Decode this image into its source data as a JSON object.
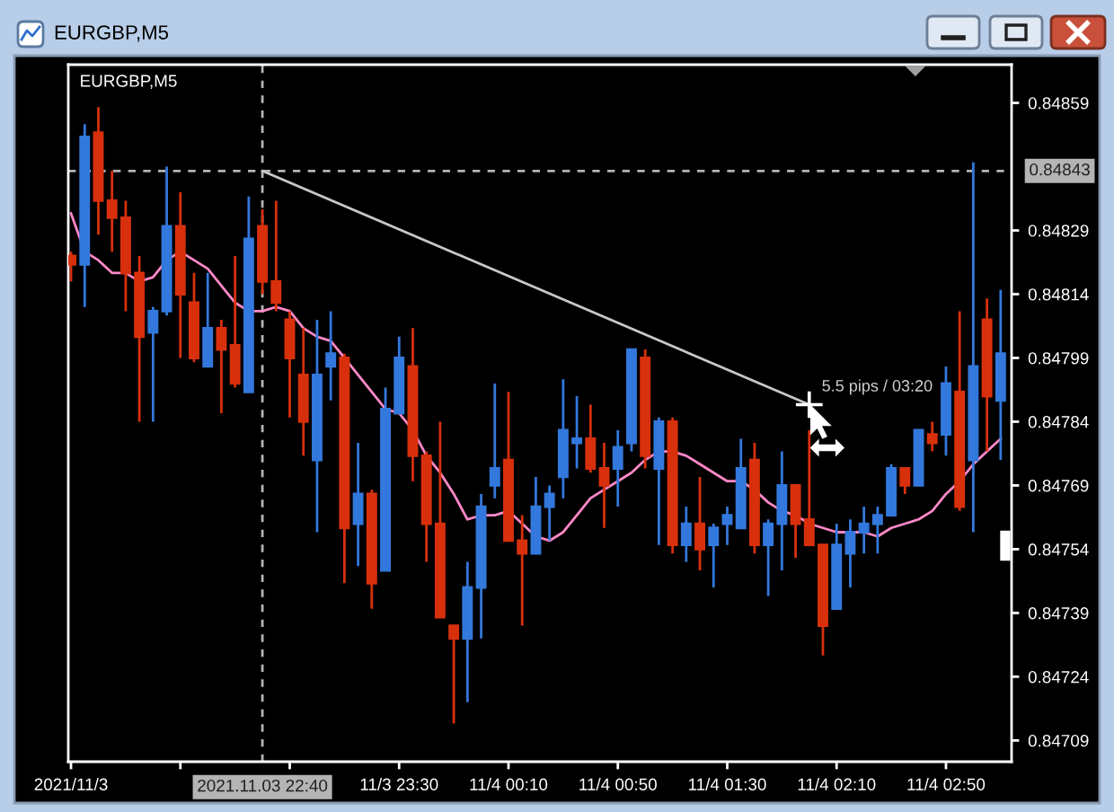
{
  "chart_data": {
    "type": "candlestick",
    "title": "EURGBP,M5",
    "subtitle": "EURGBP,M5",
    "x": [
      "2021-11-03T21:30",
      "2021-11-03T21:35",
      "2021-11-03T21:40",
      "2021-11-03T21:45",
      "2021-11-03T21:50",
      "2021-11-03T21:55",
      "2021-11-03T22:00",
      "2021-11-03T22:05",
      "2021-11-03T22:10",
      "2021-11-03T22:15",
      "2021-11-03T22:20",
      "2021-11-03T22:25",
      "2021-11-03T22:30",
      "2021-11-03T22:35",
      "2021-11-03T22:40",
      "2021-11-03T22:45",
      "2021-11-03T22:50",
      "2021-11-03T22:55",
      "2021-11-03T23:00",
      "2021-11-03T23:05",
      "2021-11-03T23:10",
      "2021-11-03T23:15",
      "2021-11-03T23:20",
      "2021-11-03T23:25",
      "2021-11-03T23:30",
      "2021-11-03T23:35",
      "2021-11-03T23:40",
      "2021-11-03T23:45",
      "2021-11-03T23:50",
      "2021-11-03T23:55",
      "2021-11-04T00:00",
      "2021-11-04T00:05",
      "2021-11-04T00:10",
      "2021-11-04T00:15",
      "2021-11-04T00:20",
      "2021-11-04T00:25",
      "2021-11-04T00:30",
      "2021-11-04T00:35",
      "2021-11-04T00:40",
      "2021-11-04T00:45",
      "2021-11-04T00:50",
      "2021-11-04T00:55",
      "2021-11-04T01:00",
      "2021-11-04T01:05",
      "2021-11-04T01:10",
      "2021-11-04T01:15",
      "2021-11-04T01:20",
      "2021-11-04T01:25",
      "2021-11-04T01:30",
      "2021-11-04T01:35",
      "2021-11-04T01:40",
      "2021-11-04T01:45",
      "2021-11-04T01:50",
      "2021-11-04T01:55",
      "2021-11-04T02:00",
      "2021-11-04T02:05",
      "2021-11-04T02:10",
      "2021-11-04T02:15",
      "2021-11-04T02:20",
      "2021-11-04T02:25",
      "2021-11-04T02:30",
      "2021-11-04T02:35",
      "2021-11-04T02:40",
      "2021-11-04T02:45",
      "2021-11-04T02:50",
      "2021-11-04T02:55",
      "2021-11-04T03:00",
      "2021-11-04T03:05",
      "2021-11-04T03:10"
    ],
    "ohlc": [
      [
        0.84823,
        0.84824,
        0.84817,
        0.84821
      ],
      [
        0.84821,
        0.84854,
        0.84811,
        0.84851
      ],
      [
        0.84852,
        0.84858,
        0.84828,
        0.84836
      ],
      [
        0.84836,
        0.84843,
        0.84824,
        0.84832
      ],
      [
        0.84832,
        0.84836,
        0.8481,
        0.84819
      ],
      [
        0.84819,
        0.84823,
        0.84784,
        0.84804
      ],
      [
        0.84805,
        0.84811,
        0.84784,
        0.8481
      ],
      [
        0.8481,
        0.84844,
        0.84809,
        0.8483
      ],
      [
        0.8483,
        0.84838,
        0.84799,
        0.84814
      ],
      [
        0.84812,
        0.84819,
        0.84798,
        0.84799
      ],
      [
        0.84797,
        0.84819,
        0.84797,
        0.84806
      ],
      [
        0.84806,
        0.84808,
        0.84786,
        0.84801
      ],
      [
        0.84802,
        0.84823,
        0.84792,
        0.84793
      ],
      [
        0.84791,
        0.84837,
        0.84791,
        0.84827
      ],
      [
        0.8483,
        0.84834,
        0.84814,
        0.84817
      ],
      [
        0.84817,
        0.84836,
        0.8481,
        0.84812
      ],
      [
        0.84808,
        0.8481,
        0.84785,
        0.84799
      ],
      [
        0.84795,
        0.84806,
        0.84776,
        0.84784
      ],
      [
        0.84775,
        0.84808,
        0.84758,
        0.84795
      ],
      [
        0.84797,
        0.8481,
        0.84789,
        0.848
      ],
      [
        0.84799,
        0.848,
        0.84746,
        0.84759
      ],
      [
        0.8476,
        0.84779,
        0.8475,
        0.84767
      ],
      [
        0.84767,
        0.84768,
        0.8474,
        0.84746
      ],
      [
        0.84749,
        0.84792,
        0.84749,
        0.84787
      ],
      [
        0.84786,
        0.84804,
        0.84786,
        0.84799
      ],
      [
        0.84797,
        0.84806,
        0.8477,
        0.84776
      ],
      [
        0.84776,
        0.84777,
        0.84751,
        0.8476
      ],
      [
        0.8476,
        0.84784,
        0.84738,
        0.84738
      ],
      [
        0.84736,
        0.84736,
        0.84713,
        0.84733
      ],
      [
        0.84733,
        0.84751,
        0.84718,
        0.84745
      ],
      [
        0.84745,
        0.84767,
        0.84733,
        0.84764
      ],
      [
        0.84769,
        0.84793,
        0.84766,
        0.84773
      ],
      [
        0.84775,
        0.84791,
        0.84756,
        0.84756
      ],
      [
        0.84756,
        0.84762,
        0.84736,
        0.84753
      ],
      [
        0.84753,
        0.84771,
        0.84753,
        0.84764
      ],
      [
        0.84764,
        0.84769,
        0.84756,
        0.84767
      ],
      [
        0.84771,
        0.84794,
        0.84766,
        0.84782
      ],
      [
        0.84779,
        0.8479,
        0.84773,
        0.8478
      ],
      [
        0.8478,
        0.84788,
        0.84772,
        0.84773
      ],
      [
        0.84773,
        0.84779,
        0.84759,
        0.84769
      ],
      [
        0.84773,
        0.84782,
        0.84764,
        0.84778
      ],
      [
        0.84779,
        0.84801,
        0.84777,
        0.84801
      ],
      [
        0.84799,
        0.84801,
        0.84773,
        0.84776
      ],
      [
        0.84773,
        0.84785,
        0.84755,
        0.84784
      ],
      [
        0.84784,
        0.84785,
        0.84753,
        0.84755
      ],
      [
        0.84755,
        0.84764,
        0.84751,
        0.8476
      ],
      [
        0.8476,
        0.84771,
        0.84749,
        0.84754
      ],
      [
        0.84755,
        0.8476,
        0.84745,
        0.84759
      ],
      [
        0.8476,
        0.84764,
        0.84755,
        0.84762
      ],
      [
        0.84759,
        0.8478,
        0.84759,
        0.84773
      ],
      [
        0.84775,
        0.84779,
        0.84753,
        0.84755
      ],
      [
        0.84755,
        0.84761,
        0.84743,
        0.8476
      ],
      [
        0.8476,
        0.84777,
        0.84749,
        0.84769
      ],
      [
        0.84769,
        0.84769,
        0.84752,
        0.8476
      ],
      [
        0.84761,
        0.84782,
        0.84755,
        0.84755
      ],
      [
        0.84755,
        0.84755,
        0.84729,
        0.84736
      ],
      [
        0.8474,
        0.8476,
        0.8474,
        0.84755
      ],
      [
        0.84753,
        0.84761,
        0.84745,
        0.84758
      ],
      [
        0.84758,
        0.84764,
        0.84753,
        0.8476
      ],
      [
        0.8476,
        0.84764,
        0.84753,
        0.84762
      ],
      [
        0.84762,
        0.84774,
        0.84762,
        0.84773
      ],
      [
        0.84773,
        0.84773,
        0.84767,
        0.84769
      ],
      [
        0.84769,
        0.84782,
        0.84769,
        0.84782
      ],
      [
        0.84781,
        0.84784,
        0.84777,
        0.84779
      ],
      [
        0.84781,
        0.84797,
        0.84776,
        0.84793
      ],
      [
        0.84791,
        0.8481,
        0.84763,
        0.84764
      ],
      [
        0.84775,
        0.84845,
        0.84758,
        0.84797
      ],
      [
        0.84808,
        0.84813,
        0.84777,
        0.8479
      ],
      [
        0.84789,
        0.84815,
        0.84775,
        0.848
      ]
    ],
    "colors": [
      "#d8300c",
      "#3378dc",
      "#d8300c",
      "#d8300c",
      "#d8300c",
      "#d8300c",
      "#3378dc",
      "#3378dc",
      "#d8300c",
      "#d8300c",
      "#3378dc",
      "#d8300c",
      "#d8300c",
      "#3378dc",
      "#d8300c",
      "#d8300c",
      "#d8300c",
      "#d8300c",
      "#3378dc",
      "#3378dc",
      "#d8300c",
      "#3378dc",
      "#d8300c",
      "#3378dc",
      "#3378dc",
      "#d8300c",
      "#d8300c",
      "#d8300c",
      "#d8300c",
      "#3378dc",
      "#3378dc",
      "#3378dc",
      "#d8300c",
      "#d8300c",
      "#3378dc",
      "#3378dc",
      "#3378dc",
      "#3378dc",
      "#d8300c",
      "#d8300c",
      "#3378dc",
      "#3378dc",
      "#d8300c",
      "#3378dc",
      "#d8300c",
      "#3378dc",
      "#d8300c",
      "#3378dc",
      "#3378dc",
      "#3378dc",
      "#d8300c",
      "#3378dc",
      "#3378dc",
      "#d8300c",
      "#d8300c",
      "#d8300c",
      "#3378dc",
      "#3378dc",
      "#3378dc",
      "#3378dc",
      "#3378dc",
      "#d8300c",
      "#3378dc",
      "#d8300c",
      "#3378dc",
      "#d8300c",
      "#3378dc",
      "#d8300c",
      "#3378dc"
    ],
    "series": [
      {
        "type": "line",
        "color": "#ff88c8",
        "values": [
          0.84833,
          0.84824,
          0.84822,
          0.84819,
          0.84819,
          0.84817,
          0.84818,
          0.84822,
          0.84824,
          0.84822,
          0.8482,
          0.84816,
          0.84812,
          0.8481,
          0.8481,
          0.84811,
          0.8481,
          0.84806,
          0.84804,
          0.84803,
          0.84799,
          0.84795,
          0.84791,
          0.84787,
          0.84786,
          0.84782,
          0.84776,
          0.84772,
          0.84767,
          0.84761,
          0.84762,
          0.84762,
          0.84763,
          0.8476,
          0.84757,
          0.84756,
          0.84758,
          0.84762,
          0.84766,
          0.84768,
          0.8477,
          0.84772,
          0.84775,
          0.84777,
          0.84777,
          0.84776,
          0.84774,
          0.84772,
          0.8477,
          0.8477,
          0.84768,
          0.84765,
          0.84763,
          0.84762,
          0.8476,
          0.84759,
          0.84758,
          0.84758,
          0.84758,
          0.84757,
          0.84759,
          0.8476,
          0.84761,
          0.84763,
          0.84767,
          0.8477,
          0.84774,
          0.84777,
          0.8478
        ]
      },
      {
        "type": "line",
        "color": "#c8c8c8",
        "x": [
          "2021-11-03T22:40",
          "2021-11-04T02:00"
        ],
        "values": [
          0.84843,
          0.84788
        ]
      }
    ],
    "xlim": [
      "2021-11-03T21:29",
      "2021-11-04T03:14"
    ],
    "ylim": [
      0.84704,
      0.84868
    ],
    "xticks": [
      {
        "value": "2021-11-03T21:30",
        "label": "2021/11/3"
      },
      {
        "value": "2021-11-03T22:10",
        "label": null
      },
      {
        "value": "2021-11-03T22:50",
        "label": null
      },
      {
        "value": "2021-11-03T23:30",
        "label": "11/3 23:30"
      },
      {
        "value": "2021-11-04T00:10",
        "label": "11/4 00:10"
      },
      {
        "value": "2021-11-04T00:50",
        "label": "11/4 00:50"
      },
      {
        "value": "2021-11-04T01:30",
        "label": "11/4 01:30"
      },
      {
        "value": "2021-11-04T02:10",
        "label": "11/4 02:10"
      },
      {
        "value": "2021-11-04T02:50",
        "label": "11/4 02:50"
      }
    ],
    "yticks": [
      0.84709,
      0.84724,
      0.84739,
      0.84754,
      0.84769,
      0.84784,
      0.84799,
      0.84814,
      0.84829,
      0.84859
    ],
    "ref_lines": [
      {
        "axis": "y",
        "value": 0.84843,
        "label": "0.84843",
        "color": "#b4b4b4",
        "line_style": "dashed"
      },
      {
        "axis": "x",
        "value": "2021-11-03T22:40",
        "label": "2021.11.03 22:40",
        "color": "#b4b4b4",
        "line_style": "dashed"
      }
    ],
    "annotations": [
      {
        "text": "5.5 pips / 03:20",
        "x": "2021-11-04T02:00",
        "y": 0.84788
      }
    ]
  }
}
